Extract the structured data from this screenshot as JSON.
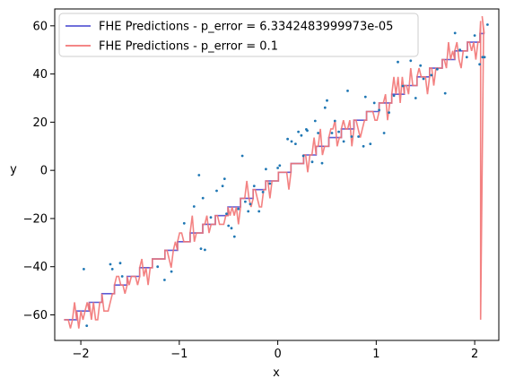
{
  "chart_data": {
    "type": "line",
    "title": "",
    "xlabel": "x",
    "ylabel": "y",
    "xlim": [
      -2.265,
      2.245
    ],
    "ylim": [
      -70.6,
      67.0
    ],
    "xticks": [
      -2,
      -1,
      0,
      1,
      2
    ],
    "yticks": [
      -60,
      -40,
      -20,
      0,
      20,
      40,
      60
    ],
    "xtick_labels": [
      "−2",
      "−1",
      "0",
      "1",
      "2"
    ],
    "ytick_labels": [
      "−60",
      "−40",
      "−20",
      "0",
      "20",
      "40",
      "60"
    ],
    "legend_position": "top-left",
    "grid": false,
    "series": [
      {
        "name": "FHE Predictions - p_error = 6.3342483999973e-05",
        "type": "step",
        "color": "#5b5bd6",
        "x_start": -2.17,
        "x_end": 2.1,
        "step_width": 0.128,
        "y_start": -62.0,
        "y_step": 3.6,
        "y_end": 58.0
      },
      {
        "name": "FHE Predictions - p_error = 0.1",
        "type": "noisy-step",
        "color": "#f27474",
        "spike": {
          "x": 2.06,
          "y_min": -62.0,
          "y_max": 62.0
        }
      }
    ],
    "scatter": {
      "color": "#1f77b4",
      "points": [
        [
          -1.97,
          -41.0
        ],
        [
          -1.94,
          -64.5
        ],
        [
          -1.7,
          -39.0
        ],
        [
          -1.68,
          -41.0
        ],
        [
          -1.6,
          -38.5
        ],
        [
          -1.58,
          -44.0
        ],
        [
          -1.22,
          -40.0
        ],
        [
          -1.15,
          -45.5
        ],
        [
          -1.08,
          -42.0
        ],
        [
          -0.95,
          -22.0
        ],
        [
          -0.85,
          -15.0
        ],
        [
          -0.8,
          -2.0
        ],
        [
          -0.78,
          -32.5
        ],
        [
          -0.76,
          -11.5
        ],
        [
          -0.74,
          -33.0
        ],
        [
          -0.68,
          -19.5
        ],
        [
          -0.62,
          -8.5
        ],
        [
          -0.56,
          -6.5
        ],
        [
          -0.54,
          -3.5
        ],
        [
          -0.52,
          -18.0
        ],
        [
          -0.5,
          -23.0
        ],
        [
          -0.47,
          -24.0
        ],
        [
          -0.44,
          -27.5
        ],
        [
          -0.4,
          -16.0
        ],
        [
          -0.36,
          6.0
        ],
        [
          -0.33,
          -13.0
        ],
        [
          -0.3,
          -17.0
        ],
        [
          -0.28,
          -14.0
        ],
        [
          -0.24,
          -6.5
        ],
        [
          -0.19,
          -17.0
        ],
        [
          -0.15,
          -9.0
        ],
        [
          -0.12,
          0.5
        ],
        [
          -0.08,
          -5.5
        ],
        [
          0.0,
          1.0
        ],
        [
          0.02,
          2.0
        ],
        [
          0.1,
          13.0
        ],
        [
          0.14,
          12.0
        ],
        [
          0.18,
          11.0
        ],
        [
          0.21,
          16.0
        ],
        [
          0.24,
          14.5
        ],
        [
          0.26,
          6.0
        ],
        [
          0.29,
          17.0
        ],
        [
          0.3,
          16.5
        ],
        [
          0.35,
          3.5
        ],
        [
          0.38,
          20.5
        ],
        [
          0.41,
          15.5
        ],
        [
          0.45,
          3.0
        ],
        [
          0.48,
          26.0
        ],
        [
          0.5,
          29.0
        ],
        [
          0.55,
          15.5
        ],
        [
          0.58,
          20.5
        ],
        [
          0.62,
          16.0
        ],
        [
          0.67,
          12.0
        ],
        [
          0.71,
          33.0
        ],
        [
          0.75,
          14.0
        ],
        [
          0.82,
          14.0
        ],
        [
          0.87,
          10.0
        ],
        [
          0.89,
          30.5
        ],
        [
          0.94,
          11.0
        ],
        [
          0.98,
          28.0
        ],
        [
          1.03,
          25.0
        ],
        [
          1.08,
          15.5
        ],
        [
          1.13,
          24.0
        ],
        [
          1.18,
          31.0
        ],
        [
          1.22,
          45.0
        ],
        [
          1.27,
          35.0
        ],
        [
          1.35,
          45.5
        ],
        [
          1.4,
          30.0
        ],
        [
          1.45,
          43.5
        ],
        [
          1.48,
          38.0
        ],
        [
          1.56,
          39.5
        ],
        [
          1.62,
          42.0
        ],
        [
          1.7,
          32.0
        ],
        [
          1.8,
          57.0
        ],
        [
          1.85,
          50.0
        ],
        [
          1.92,
          47.0
        ],
        [
          2.0,
          56.0
        ],
        [
          2.05,
          44.0
        ],
        [
          2.08,
          47.0
        ],
        [
          2.1,
          47.0
        ],
        [
          2.13,
          60.5
        ]
      ]
    }
  }
}
